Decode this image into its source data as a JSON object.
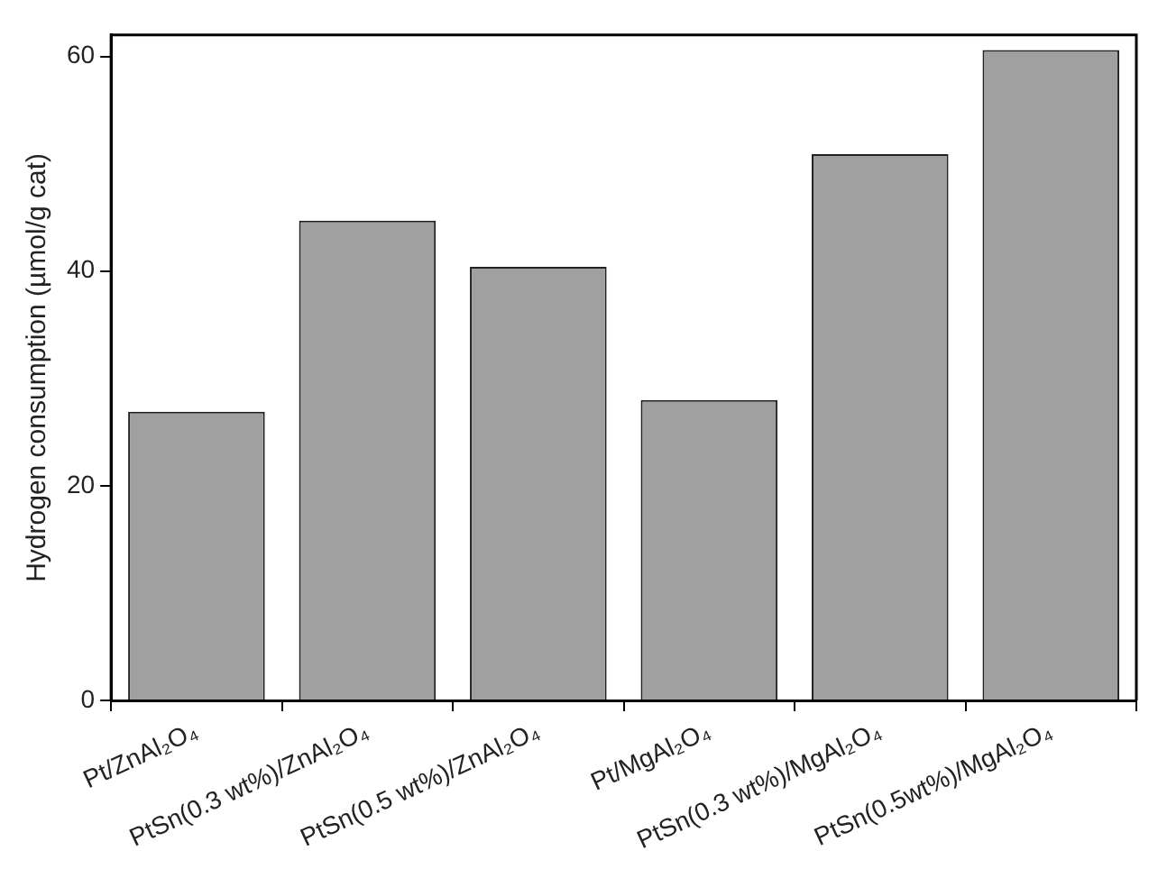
{
  "chart_data": {
    "type": "bar",
    "ylabel": "Hydrogen consumption (µmol/g cat)",
    "categories": [
      "Pt/ZnAl₂O₄",
      "PtSn(0.3 wt%)/ZnAl₂O₄",
      "PtSn(0.5 wt%)/ZnAl₂O₄",
      "Pt/MgAl₂O₄",
      "PtSn(0.3 wt%)/MgAl₂O₄",
      "PtSn(0.5wt%)/MgAl₂O₄"
    ],
    "values": [
      26.9,
      44.7,
      40.4,
      28.0,
      50.9,
      60.6
    ],
    "color": "#a0a0a0",
    "ylim": [
      0,
      62
    ],
    "yticks": [
      0,
      20,
      40,
      60
    ],
    "grid": false,
    "legend": false
  }
}
